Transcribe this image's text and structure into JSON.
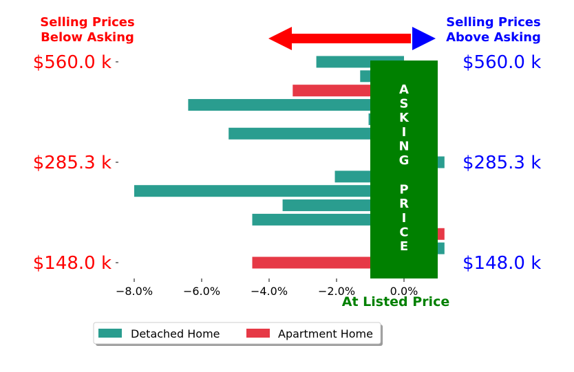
{
  "chart_data": {
    "type": "bar",
    "orientation": "horizontal",
    "xlim": [
      -8.5,
      1.2
    ],
    "ylim": [
      -0.7,
      13.7
    ],
    "x_ticks": [
      -8.0,
      -6.0,
      -4.0,
      -2.0,
      0.0
    ],
    "x_tick_labels": [
      "−8.0%",
      "−6.0%",
      "−4.0%",
      "−2.0%",
      "0.0%"
    ],
    "y_tick_labels": [
      {
        "row": 0,
        "label": "$148.0 k"
      },
      {
        "row": 7,
        "label": "$285.3 k"
      },
      {
        "row": 14,
        "label": "$560.0 k"
      }
    ],
    "series": [
      {
        "name": "Detached Home",
        "color": "#2a9d8f"
      },
      {
        "name": "Apartment Home",
        "color": "#e63946"
      }
    ],
    "bars": [
      {
        "row": 0,
        "value": -4.5,
        "series": 1
      },
      {
        "row": 1,
        "value": 1.2,
        "series": 0
      },
      {
        "row": 2,
        "value": 1.2,
        "series": 1
      },
      {
        "row": 3,
        "value": -4.5,
        "series": 0
      },
      {
        "row": 4,
        "value": -3.6,
        "series": 0
      },
      {
        "row": 5,
        "value": -8.0,
        "series": 0
      },
      {
        "row": 6,
        "value": -2.05,
        "series": 0
      },
      {
        "row": 7,
        "value": 1.2,
        "series": 0
      },
      {
        "row": 9,
        "value": -5.2,
        "series": 0
      },
      {
        "row": 10,
        "value": -1.05,
        "series": 0
      },
      {
        "row": 11,
        "value": -6.4,
        "series": 0
      },
      {
        "row": 12,
        "value": -3.3,
        "series": 1
      },
      {
        "row": 13,
        "value": -1.3,
        "series": 0
      },
      {
        "row": 14,
        "value": -2.6,
        "series": 0
      }
    ],
    "asking_band": {
      "from": -1.0,
      "to": 1.0,
      "color": "#008000",
      "text": "ASKING  PRICE"
    },
    "annotations": {
      "below_asking": "Selling Prices\nBelow Asking",
      "above_asking": "Selling Prices\nAbove Asking",
      "at_listed": "At Listed Price"
    },
    "colors": {
      "left_labels": "#ff0000",
      "right_labels": "#0000ff",
      "arrow_left": "#ff0000",
      "arrow_right": "#0000ff",
      "at_listed": "#008000"
    },
    "legend_position": "bottom-center"
  }
}
